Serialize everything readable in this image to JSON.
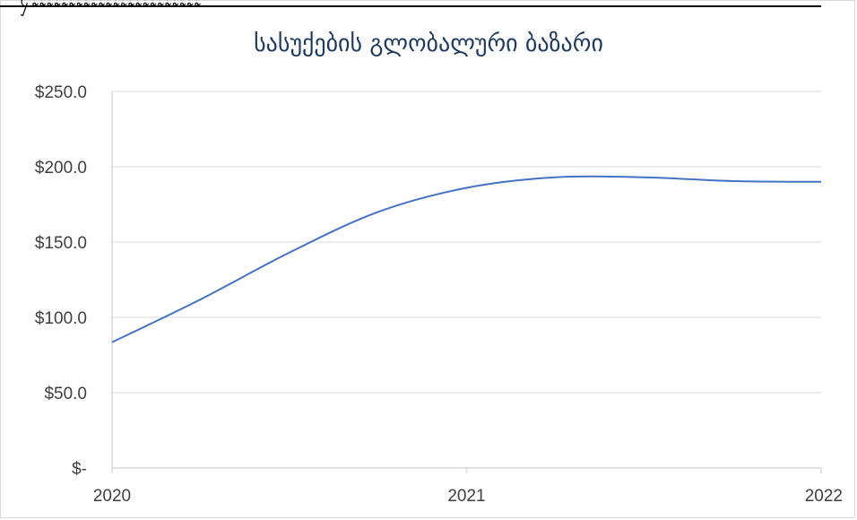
{
  "header": {
    "cut_text": "ႁႊႊႊႊႊႊႊႊႊႊႊႊႊႊႊႊႊႊႊႊႊႊႊ"
  },
  "chart_data": {
    "type": "line",
    "title": "სასუქების გლობალური ბაზარი",
    "x": [
      2020,
      2020.25,
      2020.5,
      2020.75,
      2021,
      2021.25,
      2021.5,
      2021.75,
      2022
    ],
    "x_ticks": [
      "2020",
      "2021",
      "2022"
    ],
    "y_ticks": [
      "$-",
      "$50.0",
      "$100.0",
      "$150.0",
      "$200.0",
      "$250.0"
    ],
    "series": [
      {
        "values": [
          83.5,
          112,
          143,
          170,
          186,
          193,
          193,
          190.5,
          190
        ]
      }
    ],
    "ylim": [
      0,
      250
    ],
    "xlim": [
      2020,
      2022
    ],
    "grid": true,
    "line_color": "#4472c4"
  }
}
